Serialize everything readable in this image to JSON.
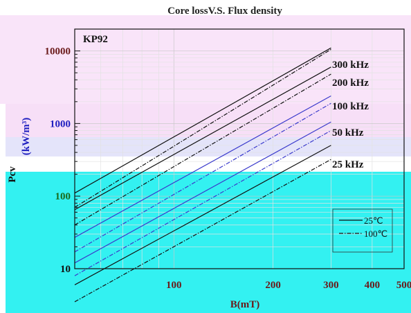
{
  "chart_data": {
    "type": "line",
    "title": "Core lossV.S. Flux density",
    "material": "KP92",
    "xlabel": "B(mT)",
    "ylabel": "Pcv",
    "ylabel_unit": "(kW/m³)",
    "xscale": "log",
    "yscale": "log",
    "xlim": [
      50,
      500
    ],
    "ylim": [
      10,
      20000
    ],
    "grid": true,
    "x_ticks": [
      100,
      200,
      300,
      400,
      500
    ],
    "x_tick_labels": [
      "100",
      "200",
      "300",
      "400",
      "500"
    ],
    "y_ticks": [
      10,
      100,
      1000,
      10000
    ],
    "y_tick_labels": [
      "10",
      "100",
      "1000",
      "10000"
    ],
    "legend": {
      "placement": "bottom-right",
      "entries": [
        {
          "label": "25℃",
          "style": "solid"
        },
        {
          "label": "100℃",
          "style": "dashdot"
        }
      ]
    },
    "series": [
      {
        "name": "300 kHz",
        "temp": "25℃",
        "x": [
          50,
          300
        ],
        "y": [
          110,
          11000
        ]
      },
      {
        "name": "300 kHz",
        "temp": "100℃",
        "x": [
          50,
          300
        ],
        "y": [
          70,
          10500
        ]
      },
      {
        "name": "200 kHz",
        "temp": "25℃",
        "x": [
          50,
          300
        ],
        "y": [
          65,
          6000
        ]
      },
      {
        "name": "200 kHz",
        "temp": "100℃",
        "x": [
          50,
          300
        ],
        "y": [
          40,
          4800
        ]
      },
      {
        "name": "100 kHz",
        "temp": "25℃",
        "x": [
          50,
          300
        ],
        "y": [
          27,
          2400
        ]
      },
      {
        "name": "100 kHz",
        "temp": "100℃",
        "x": [
          50,
          300
        ],
        "y": [
          17,
          1900
        ]
      },
      {
        "name": "50 kHz",
        "temp": "25℃",
        "x": [
          50,
          300
        ],
        "y": [
          12,
          1050
        ]
      },
      {
        "name": "50 kHz",
        "temp": "100℃",
        "x": [
          50,
          300
        ],
        "y": [
          8,
          800
        ]
      },
      {
        "name": "25 kHz",
        "temp": "25℃",
        "x": [
          50,
          300
        ],
        "y": [
          6,
          500
        ]
      },
      {
        "name": "25 kHz",
        "temp": "100℃",
        "x": [
          50,
          300
        ],
        "y": [
          3.5,
          320
        ]
      }
    ],
    "series_labels": [
      "300 kHz",
      "200 kHz",
      "100 kHz",
      "50 kHz",
      "25 kHz"
    ]
  },
  "colors": {
    "background": "#ffffff",
    "overlay_pink": "#f9e4f9",
    "overlay_lavender": "#e6e6fb",
    "overlay_cyan": "#33f1f1",
    "grid": "#dcdcdc",
    "line": "#111111",
    "line_blue": "#3a3acc",
    "line_green": "#1a4a1a",
    "tick_blue": "#2020c0",
    "tick_green": "#1a6a1a",
    "axis_label_blue": "#2020c0"
  }
}
